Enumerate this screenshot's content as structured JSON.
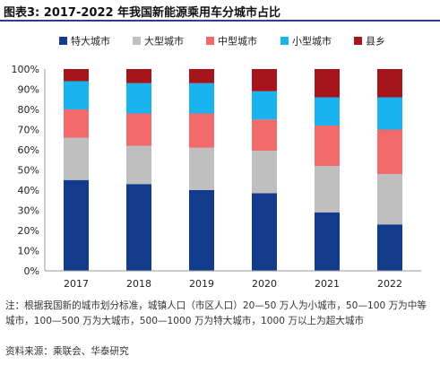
{
  "header": {
    "title": "图表3:  2017-2022 年我国新能源乘用车分城市占比"
  },
  "chart_data": {
    "type": "bar",
    "stacked": true,
    "categories": [
      "2017",
      "2018",
      "2019",
      "2020",
      "2021",
      "2022"
    ],
    "series": [
      {
        "name": "特大城市",
        "color": "#123b8c",
        "values": [
          45,
          43,
          40,
          38.5,
          29,
          23
        ]
      },
      {
        "name": "大型城市",
        "color": "#bfbfbf",
        "values": [
          21,
          19,
          21,
          21,
          23,
          25
        ]
      },
      {
        "name": "中型城市",
        "color": "#f26a6a",
        "values": [
          14,
          16,
          17,
          15.5,
          20,
          22
        ]
      },
      {
        "name": "小型城市",
        "color": "#19b3ef",
        "values": [
          14,
          15,
          15,
          14,
          14,
          16
        ]
      },
      {
        "name": "县乡",
        "color": "#a6141c",
        "values": [
          6,
          7,
          7,
          11,
          14,
          14
        ]
      }
    ],
    "ylim": [
      0,
      100
    ],
    "yticks": [
      "0%",
      "10%",
      "20%",
      "30%",
      "40%",
      "50%",
      "60%",
      "70%",
      "80%",
      "90%",
      "100%"
    ],
    "legend_position": "top",
    "grid": false
  },
  "footer": {
    "note": "注：根据我国新的城市划分标准，城镇人口（市区人口）20—50 万人为小城市，50—100 万为中等城市，100—500 万为大城市，500—1000 万为特大城市，1000 万以上为超大城市",
    "source": "资料来源：乘联会、华泰研究"
  }
}
